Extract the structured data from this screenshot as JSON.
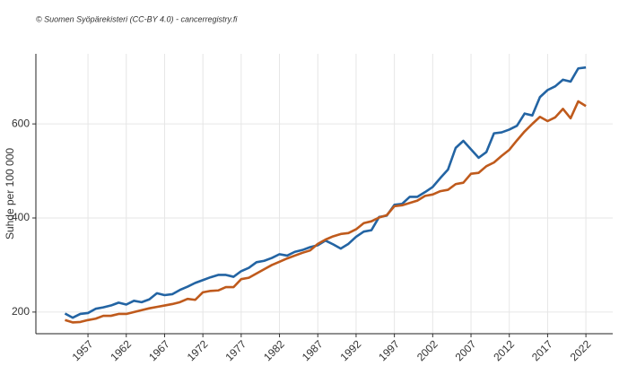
{
  "chart_data": {
    "type": "line",
    "annotation": "© Suomen Syöpärekisteri (CC-BY 4.0) - cancerregistry.fi",
    "y_label": "Suhde per 100 000",
    "x": [
      1954,
      1955,
      1956,
      1957,
      1958,
      1959,
      1960,
      1961,
      1962,
      1963,
      1964,
      1965,
      1966,
      1967,
      1968,
      1969,
      1970,
      1971,
      1972,
      1973,
      1974,
      1975,
      1976,
      1977,
      1978,
      1979,
      1980,
      1981,
      1982,
      1983,
      1984,
      1985,
      1986,
      1987,
      1988,
      1989,
      1990,
      1991,
      1992,
      1993,
      1994,
      1995,
      1996,
      1997,
      1998,
      1999,
      2000,
      2001,
      2002,
      2003,
      2004,
      2005,
      2006,
      2007,
      2008,
      2009,
      2010,
      2011,
      2012,
      2013,
      2014,
      2015,
      2016,
      2017,
      2018,
      2019,
      2020,
      2021,
      2022
    ],
    "series": [
      {
        "color": "#2364a3",
        "values": [
          197,
          188,
          196,
          198,
          207,
          210,
          214,
          220,
          216,
          224,
          221,
          227,
          240,
          236,
          238,
          247,
          254,
          262,
          268,
          274,
          279,
          279,
          275,
          287,
          294,
          306,
          309,
          315,
          323,
          320,
          328,
          332,
          338,
          342,
          352,
          344,
          335,
          345,
          360,
          371,
          374,
          402,
          405,
          428,
          430,
          445,
          445,
          455,
          466,
          485,
          503,
          549,
          564,
          546,
          528,
          540,
          580,
          582,
          588,
          596,
          622,
          618,
          657,
          672,
          680,
          694,
          690,
          718,
          720
        ]
      },
      {
        "color": "#bf5a1c",
        "values": [
          183,
          178,
          179,
          183,
          186,
          192,
          192,
          196,
          196,
          200,
          204,
          208,
          211,
          214,
          217,
          221,
          228,
          226,
          242,
          245,
          246,
          253,
          253,
          270,
          273,
          282,
          291,
          300,
          307,
          314,
          320,
          326,
          331,
          345,
          354,
          361,
          366,
          368,
          376,
          389,
          393,
          401,
          406,
          425,
          427,
          432,
          437,
          447,
          450,
          457,
          460,
          472,
          475,
          494,
          496,
          510,
          518,
          532,
          545,
          565,
          584,
          600,
          615,
          606,
          614,
          632,
          612,
          648,
          638
        ]
      }
    ],
    "xlim": [
      1950.2,
      2025.5
    ],
    "xticks": [
      1957,
      1962,
      1967,
      1972,
      1977,
      1982,
      1987,
      1992,
      1997,
      2002,
      2007,
      2012,
      2017,
      2022
    ],
    "ylim": [
      154,
      749
    ],
    "yticks": [
      200,
      400,
      600
    ],
    "grid": true
  }
}
